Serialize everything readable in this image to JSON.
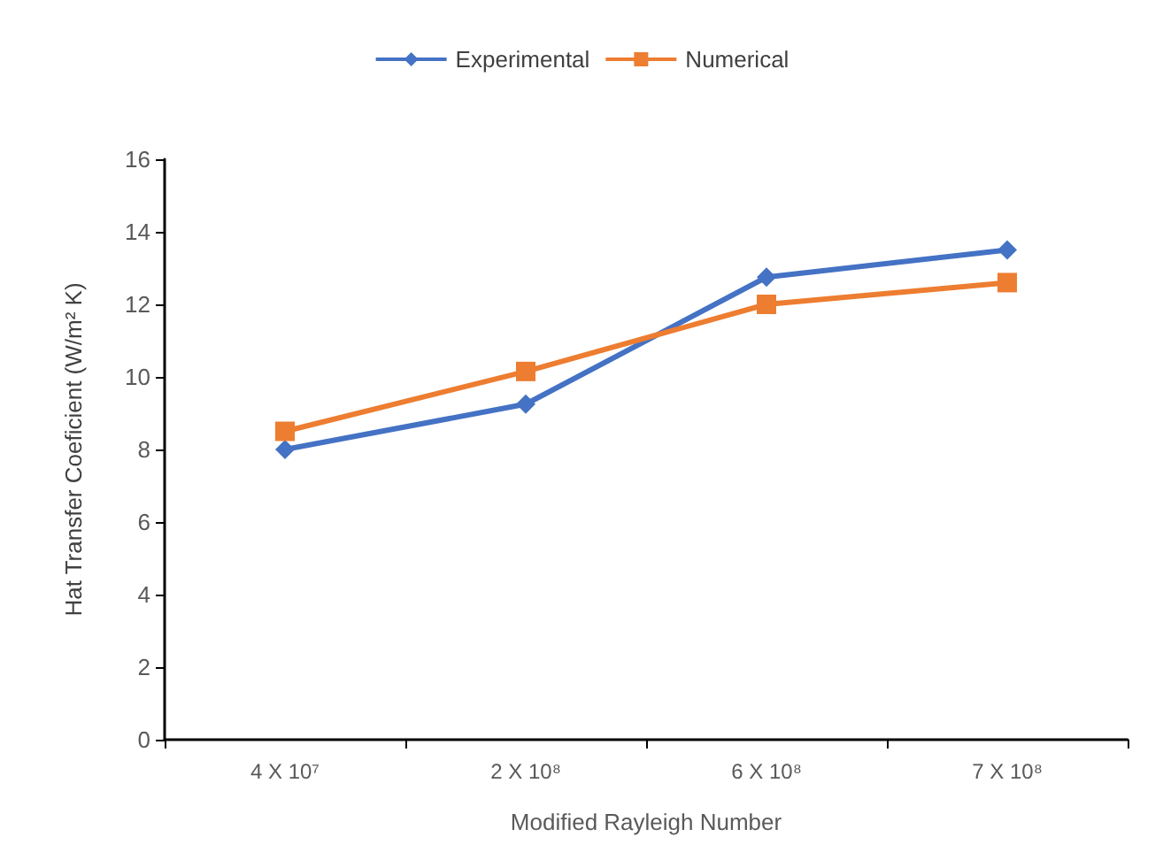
{
  "chart_data": {
    "type": "line",
    "xlabel": "Modified Rayleigh Number",
    "ylabel": "Hat Transfer Coeficient (W/m² K)",
    "categories": [
      "4 X 10⁷",
      "2 X 10⁸",
      "6 X 10⁸",
      "7 X 10⁸"
    ],
    "series": [
      {
        "name": "Experimental",
        "color": "#4472c4",
        "marker": "diamond",
        "values": [
          8.0,
          9.25,
          12.75,
          13.5
        ]
      },
      {
        "name": "Numerical",
        "color": "#ed7d31",
        "marker": "square",
        "values": [
          8.5,
          10.15,
          12.0,
          12.6
        ]
      }
    ],
    "ylim": [
      0,
      16
    ],
    "yticks": [
      0,
      2,
      4,
      6,
      8,
      10,
      12,
      14,
      16
    ],
    "grid": false,
    "legend": "top",
    "line_style": "solid"
  }
}
